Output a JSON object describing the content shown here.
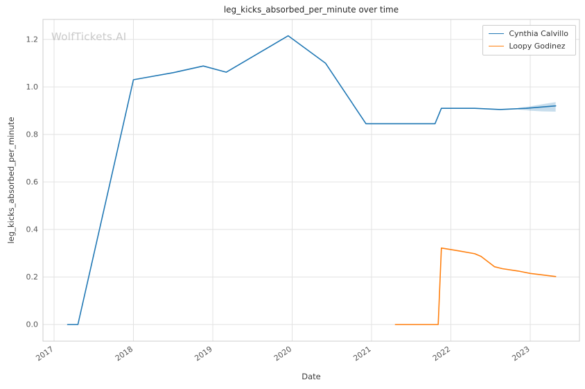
{
  "watermark": "WolfTickets.AI",
  "chart_data": {
    "type": "line",
    "title": "leg_kicks_absorbed_per_minute over time",
    "xlabel": "Date",
    "ylabel": "leg_kicks_absorbed_per_minute",
    "grid": true,
    "legend_position": "upper right",
    "xlim": [
      2016.86,
      2023.62
    ],
    "ylim": [
      -0.07,
      1.284
    ],
    "x_ticks": [
      2017,
      2018,
      2019,
      2020,
      2021,
      2022,
      2023
    ],
    "x_tick_labels": [
      "2017",
      "2018",
      "2019",
      "2020",
      "2021",
      "2022",
      "2023"
    ],
    "y_ticks": [
      0.0,
      0.2,
      0.4,
      0.6,
      0.8,
      1.0,
      1.2
    ],
    "y_tick_labels": [
      "0.0",
      "0.2",
      "0.4",
      "0.6",
      "0.8",
      "1.0",
      "1.2"
    ],
    "grid_color": "#e2e2e2",
    "spine_color": "#cccccc",
    "series": [
      {
        "name": "Cynthia Calvillo",
        "color": "#1f77b4",
        "x": [
          2017.17,
          2017.3,
          2018.0,
          2018.5,
          2018.88,
          2019.17,
          2019.95,
          2020.42,
          2020.93,
          2021.8,
          2021.88,
          2022.3,
          2022.62,
          2022.95,
          2023.32
        ],
        "y": [
          0.0,
          0.0,
          1.03,
          1.06,
          1.088,
          1.062,
          1.215,
          1.1,
          0.845,
          0.845,
          0.91,
          0.91,
          0.905,
          0.91,
          0.92
        ],
        "band": {
          "x": [
            2022.85,
            2023.0,
            2023.15,
            2023.32
          ],
          "upper": [
            0.912,
            0.918,
            0.927,
            0.936
          ],
          "lower": [
            0.905,
            0.9,
            0.897,
            0.896
          ]
        }
      },
      {
        "name": "Loopy Godinez",
        "color": "#ff7f0e",
        "x": [
          2021.3,
          2021.84,
          2021.88,
          2022.1,
          2022.3,
          2022.38,
          2022.55,
          2022.65,
          2022.85,
          2023.0,
          2023.32
        ],
        "y": [
          0.0,
          0.0,
          0.322,
          0.31,
          0.298,
          0.287,
          0.243,
          0.235,
          0.225,
          0.215,
          0.202
        ]
      }
    ]
  }
}
